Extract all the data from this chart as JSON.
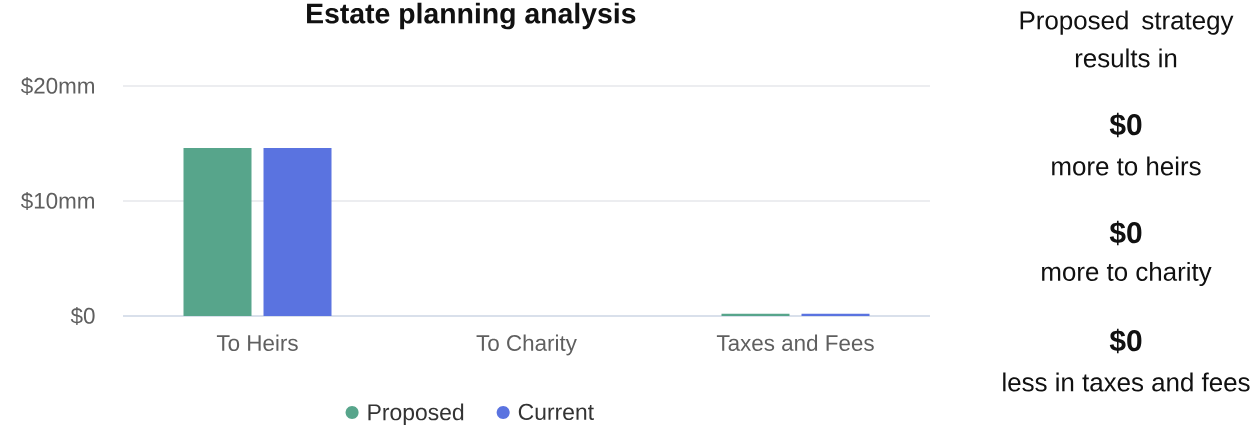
{
  "chart_data": [
    {
      "type": "bar",
      "title": "Estate planning analysis",
      "categories": [
        "To Heirs",
        "To Charity",
        "Taxes and Fees"
      ],
      "series": [
        {
          "name": "Proposed",
          "color": "#57a58b",
          "values": [
            14.6,
            0,
            0.2
          ]
        },
        {
          "name": "Current",
          "color": "#5a73e0",
          "values": [
            14.6,
            0,
            0.2
          ]
        }
      ],
      "ylim": [
        0,
        20
      ],
      "yticks": [
        {
          "value": 0,
          "label": "$0"
        },
        {
          "value": 10,
          "label": "$10mm"
        },
        {
          "value": 20,
          "label": "$20mm"
        }
      ],
      "grid": "y",
      "legend": "bottom"
    },
    {
      "type": "other",
      "title": "Proposed strategy results in",
      "annotations": [
        "$0",
        "more to heirs",
        "$0",
        "more to charity",
        "$0",
        "less in taxes and fees"
      ]
    }
  ]
}
